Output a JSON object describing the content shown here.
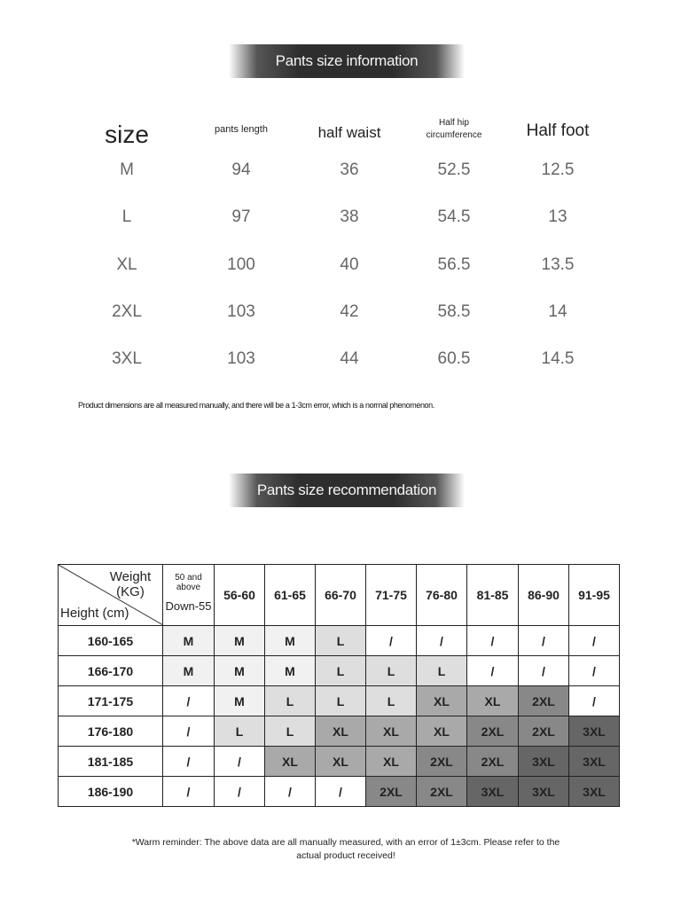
{
  "info": {
    "title": "Pants size information",
    "headers": [
      "size",
      "pants length",
      "half waist",
      "Half hip circumference",
      "Half foot"
    ],
    "rows": [
      [
        "M",
        "94",
        "36",
        "52.5",
        "12.5"
      ],
      [
        "L",
        "97",
        "38",
        "54.5",
        "13"
      ],
      [
        "XL",
        "100",
        "40",
        "56.5",
        "13.5"
      ],
      [
        "2XL",
        "103",
        "42",
        "58.5",
        "14"
      ],
      [
        "3XL",
        "103",
        "44",
        "60.5",
        "14.5"
      ]
    ],
    "note": "Product dimensions are all measured manually, and there will be a 1-3cm error, which is a normal phenomenon."
  },
  "recommend": {
    "title": "Pants size recommendation",
    "weight_label": "Weight (KG)",
    "height_label": "Height (cm)",
    "first_col_top": "50 and above",
    "first_col_bottom": "Down-55",
    "weights": [
      "56-60",
      "61-65",
      "66-70",
      "71-75",
      "76-80",
      "81-85",
      "86-90",
      "91-95"
    ],
    "rows": [
      {
        "height": "160-165",
        "sizes": [
          "M",
          "M",
          "M",
          "L",
          "/",
          "/",
          "/",
          "/",
          "/"
        ]
      },
      {
        "height": "166-170",
        "sizes": [
          "M",
          "M",
          "M",
          "L",
          "L",
          "L",
          "/",
          "/",
          "/"
        ]
      },
      {
        "height": "171-175",
        "sizes": [
          "/",
          "M",
          "L",
          "L",
          "L",
          "XL",
          "XL",
          "2XL",
          "/"
        ]
      },
      {
        "height": "176-180",
        "sizes": [
          "/",
          "L",
          "L",
          "XL",
          "XL",
          "XL",
          "2XL",
          "2XL",
          "3XL"
        ]
      },
      {
        "height": "181-185",
        "sizes": [
          "/",
          "/",
          "XL",
          "XL",
          "XL",
          "2XL",
          "2XL",
          "3XL",
          "3XL"
        ]
      },
      {
        "height": "186-190",
        "sizes": [
          "/",
          "/",
          "/",
          "/",
          "2XL",
          "2XL",
          "3XL",
          "3XL",
          "3XL"
        ]
      }
    ],
    "shades": {
      "M": "#f1f1f1",
      "L": "#dedede",
      "XL": "#a9a9a9",
      "2XL": "#888888",
      "3XL": "#666666",
      "/": "#ffffff"
    },
    "note": "*Warm reminder: The above data are all manually measured, with an error of 1±3cm. Please refer to the actual product received!"
  }
}
